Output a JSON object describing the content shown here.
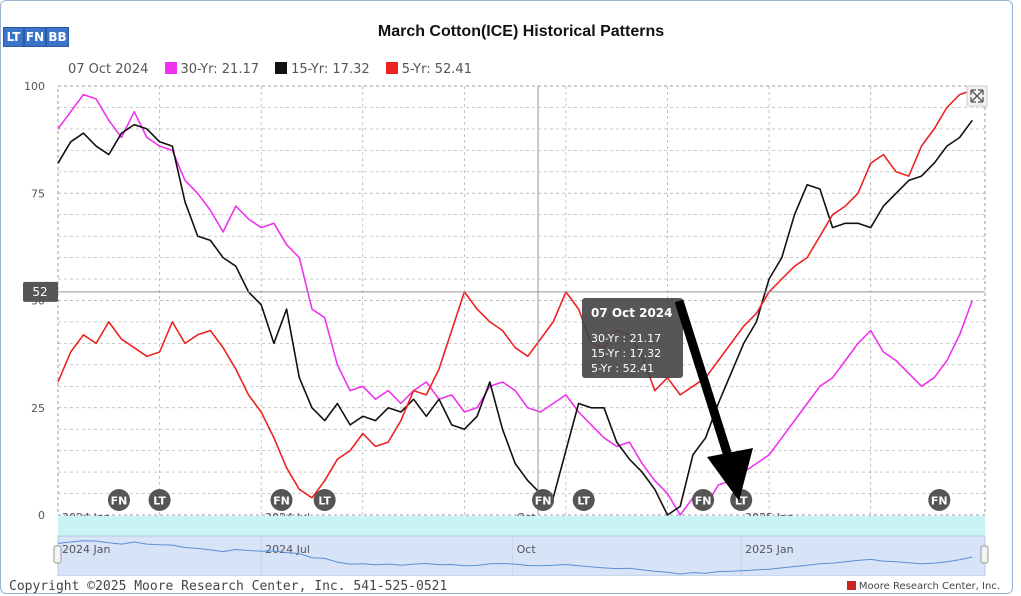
{
  "toolbar": {
    "buttons": [
      "LT",
      "FN",
      "BB"
    ]
  },
  "legend": {
    "date": "07 Oct 2024",
    "items": [
      {
        "label": "30-Yr: 21.17",
        "color": "#ee33ee"
      },
      {
        "label": "15-Yr: 17.32",
        "color": "#111111"
      },
      {
        "label": "5-Yr: 52.41",
        "color": "#ee2222"
      }
    ]
  },
  "crosshair": {
    "y_label": "52",
    "value": 52
  },
  "tooltip": {
    "date": "07 Oct 2024",
    "lines": [
      "30-Yr : 21.17",
      "15-Yr : 17.32",
      "5-Yr : 52.41"
    ]
  },
  "markers": [
    {
      "label": "FN",
      "x": 2.4
    },
    {
      "label": "LT",
      "x": 4.0
    },
    {
      "label": "FN",
      "x": 8.8
    },
    {
      "label": "LT",
      "x": 10.5
    },
    {
      "label": "FN",
      "x": 19.1
    },
    {
      "label": "LT",
      "x": 20.7
    },
    {
      "label": "FN",
      "x": 25.4
    },
    {
      "label": "LT",
      "x": 26.9
    },
    {
      "label": "FN",
      "x": 34.7
    }
  ],
  "navigator": {
    "labels": [
      "2024 Jan",
      "2024 Jul",
      "Oct",
      "2025 Jan"
    ]
  },
  "copyright": "Copyright ©2025 Moore Research Center, Inc. 541-525-0521",
  "brand": "Moore Research Center, Inc.",
  "chart_data": {
    "type": "line",
    "title": "March Cotton(ICE) Historical Patterns",
    "x_unit": "months from 1 Jan 2024",
    "x_ticks": [
      {
        "label": "2024 Jan",
        "x": 0
      },
      {
        "label": "2024 Jul",
        "x": 8
      },
      {
        "label": "Oct",
        "x": 17.9
      },
      {
        "label": "2025 Jan",
        "x": 26.9
      }
    ],
    "xlim": [
      0,
      36.5
    ],
    "ylim": [
      0,
      100
    ],
    "y_ticks": [
      0,
      25,
      50,
      75,
      100
    ],
    "grid": true,
    "crosshair_x": 18.9,
    "series": [
      {
        "name": "30-Yr",
        "color": "#ee33ee",
        "x": [
          0,
          0.5,
          1,
          1.5,
          2,
          2.5,
          3,
          3.5,
          4,
          4.5,
          5,
          5.5,
          6,
          6.5,
          7,
          7.5,
          8,
          8.5,
          9,
          9.5,
          10,
          10.5,
          11,
          11.5,
          12,
          12.5,
          13,
          13.5,
          14,
          14.5,
          15,
          15.5,
          16,
          16.5,
          17,
          17.5,
          18,
          18.5,
          19,
          19.5,
          20,
          20.5,
          21,
          21.5,
          22,
          22.5,
          23,
          23.5,
          24,
          24.5,
          25,
          25.5,
          26,
          26.5,
          27,
          27.5,
          28,
          28.5,
          29,
          29.5,
          30,
          30.5,
          31,
          31.5,
          32,
          32.5,
          33,
          33.5,
          34,
          34.5,
          35,
          35.5,
          36
        ],
        "values": [
          90,
          94,
          98,
          97,
          92,
          88,
          94,
          88,
          86,
          85,
          78,
          75,
          71,
          66,
          72,
          69,
          67,
          68,
          63,
          60,
          48,
          46,
          35,
          29,
          30,
          27,
          29,
          26,
          29,
          31,
          27,
          28,
          24,
          25,
          30,
          31,
          29,
          25,
          24,
          26,
          28,
          24,
          21,
          18,
          16,
          17,
          12,
          8,
          5,
          0,
          4,
          2,
          7,
          8,
          10,
          12,
          14,
          18,
          22,
          26,
          30,
          32,
          36,
          40,
          43,
          38,
          36,
          33,
          30,
          32,
          36,
          42,
          50
        ]
      },
      {
        "name": "15-Yr",
        "color": "#111111",
        "x": [
          0,
          0.5,
          1,
          1.5,
          2,
          2.5,
          3,
          3.5,
          4,
          4.5,
          5,
          5.5,
          6,
          6.5,
          7,
          7.5,
          8,
          8.5,
          9,
          9.5,
          10,
          10.5,
          11,
          11.5,
          12,
          12.5,
          13,
          13.5,
          14,
          14.5,
          15,
          15.5,
          16,
          16.5,
          17,
          17.5,
          18,
          18.5,
          19,
          19.5,
          20,
          20.5,
          21,
          21.5,
          22,
          22.5,
          23,
          23.5,
          24,
          24.5,
          25,
          25.5,
          26,
          26.5,
          27,
          27.5,
          28,
          28.5,
          29,
          29.5,
          30,
          30.5,
          31,
          31.5,
          32,
          32.5,
          33,
          33.5,
          34,
          34.5,
          35,
          35.5,
          36
        ],
        "values": [
          82,
          87,
          89,
          86,
          84,
          89,
          91,
          90,
          87,
          86,
          73,
          65,
          64,
          60,
          58,
          52,
          49,
          40,
          48,
          32,
          25,
          22,
          26,
          21,
          23,
          22,
          25,
          24,
          27,
          23,
          27,
          21,
          20,
          23,
          31,
          20,
          12,
          8,
          5,
          4,
          15,
          26,
          25,
          25,
          17,
          13,
          10,
          6,
          0,
          2,
          14,
          18,
          26,
          33,
          40,
          45,
          55,
          60,
          70,
          77,
          76,
          67,
          68,
          68,
          67,
          72,
          75,
          78,
          79,
          82,
          86,
          88,
          92
        ]
      },
      {
        "name": "5-Yr",
        "color": "#ee2222",
        "x": [
          0,
          0.5,
          1,
          1.5,
          2,
          2.5,
          3,
          3.5,
          4,
          4.5,
          5,
          5.5,
          6,
          6.5,
          7,
          7.5,
          8,
          8.5,
          9,
          9.5,
          10,
          10.5,
          11,
          11.5,
          12,
          12.5,
          13,
          13.5,
          14,
          14.5,
          15,
          15.5,
          16,
          16.5,
          17,
          17.5,
          18,
          18.5,
          19,
          19.5,
          20,
          20.5,
          21,
          21.5,
          22,
          22.5,
          23,
          23.5,
          24,
          24.5,
          25,
          25.5,
          26,
          26.5,
          27,
          27.5,
          28,
          28.5,
          29,
          29.5,
          30,
          30.5,
          31,
          31.5,
          32,
          32.5,
          33,
          33.5,
          34,
          34.5,
          35,
          35.5,
          36
        ],
        "values": [
          31,
          38,
          42,
          40,
          45,
          41,
          39,
          37,
          38,
          45,
          40,
          42,
          43,
          39,
          34,
          28,
          24,
          18,
          11,
          6,
          4,
          8,
          13,
          15,
          19,
          16,
          17,
          22,
          29,
          28,
          34,
          43,
          52,
          48,
          45,
          43,
          39,
          37,
          41,
          45,
          52,
          48,
          40,
          39,
          43,
          42,
          37,
          29,
          32,
          28,
          30,
          32,
          36,
          40,
          44,
          47,
          52,
          55,
          58,
          60,
          65,
          70,
          72,
          75,
          82,
          84,
          80,
          79,
          86,
          90,
          95,
          98,
          99
        ]
      }
    ]
  }
}
